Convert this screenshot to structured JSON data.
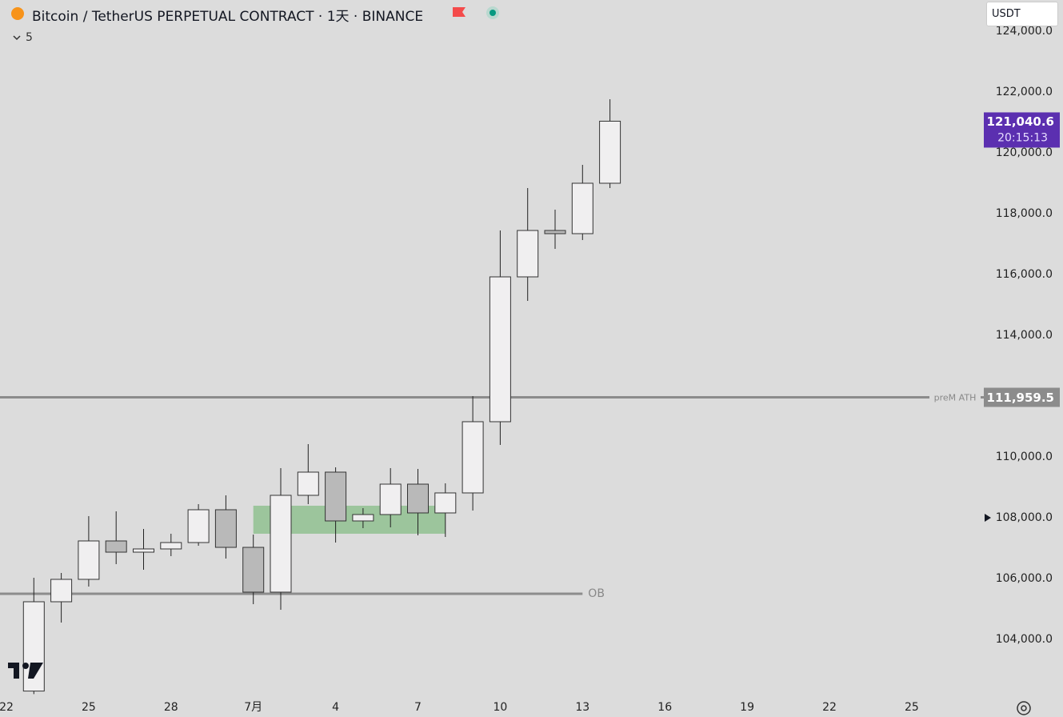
{
  "header": {
    "symbol": "Bitcoin / TetherUS PERPETUAL CONTRACT · 1天 · BINANCE",
    "indicator_count": "5",
    "currency": "USDT"
  },
  "chart_data": {
    "type": "candlestick",
    "categories": [
      "22",
      null,
      null,
      "25",
      null,
      null,
      "28",
      null,
      null,
      "7月",
      null,
      null,
      "4",
      null,
      null,
      "7",
      null,
      null,
      "10",
      null,
      null,
      "13",
      null,
      null,
      "16",
      null,
      null,
      "19",
      null,
      null,
      "22",
      null,
      null,
      "25",
      null,
      null
    ],
    "open": [
      null,
      102300,
      105237,
      105974,
      107237,
      106868,
      106974,
      107184,
      108263,
      107026,
      105553,
      108737,
      109500,
      107895,
      108105,
      109105,
      108158,
      108816,
      111158,
      115921,
      117447,
      117342,
      119000,
      null,
      null,
      null,
      null,
      null,
      null,
      null,
      null,
      null,
      null,
      null,
      null,
      null
    ],
    "high": [
      null,
      106026,
      106184,
      108053,
      108210,
      107632,
      107474,
      108447,
      108737,
      107447,
      109632,
      110421,
      109658,
      108316,
      109632,
      109605,
      109132,
      112000,
      117447,
      118842,
      118132,
      119605,
      121763,
      null,
      null,
      null,
      null,
      null,
      null,
      null,
      null,
      null,
      null,
      null,
      null,
      null
    ],
    "low": [
      null,
      102200,
      104553,
      105737,
      106474,
      106290,
      106737,
      107079,
      106658,
      105158,
      104974,
      108447,
      107184,
      107658,
      107684,
      107421,
      107368,
      108237,
      110395,
      115132,
      116842,
      117132,
      118842,
      null,
      null,
      null,
      null,
      null,
      null,
      null,
      null,
      null,
      null,
      null,
      null,
      null
    ],
    "close": [
      null,
      105237,
      105974,
      107237,
      106868,
      106974,
      107184,
      108263,
      107026,
      105553,
      108737,
      109500,
      107895,
      108105,
      109105,
      108158,
      108816,
      111158,
      115921,
      117447,
      117342,
      119000,
      121040.6,
      null,
      null,
      null,
      null,
      null,
      null,
      null,
      null,
      null,
      null,
      null,
      null,
      null
    ],
    "up_color": "#f0eff0",
    "down_color": "#b9b9b9",
    "ylim": [
      102184,
      125026
    ],
    "yticks": [
      {
        "value": 104000,
        "label": "104,000.0"
      },
      {
        "value": 106000,
        "label": "106,000.0"
      },
      {
        "value": 108000,
        "label": "108,000.0"
      },
      {
        "value": 110000,
        "label": "110,000.0"
      },
      {
        "value": 112000,
        "label": "112,000.0"
      },
      {
        "value": 114000,
        "label": "114,000.0"
      },
      {
        "value": 116000,
        "label": "116,000.0"
      },
      {
        "value": 118000,
        "label": "118,000.0"
      },
      {
        "value": 120000,
        "label": "120,000.0"
      },
      {
        "value": 122000,
        "label": "122,000.0"
      },
      {
        "value": 124000,
        "label": "124,000.0"
      }
    ],
    "levels": [
      {
        "name": "preM ATH",
        "value": 111959.5,
        "value_label": "111,959.5",
        "color": "#8c8c8c"
      },
      {
        "name": "OB",
        "value": 105500,
        "end": 21,
        "color": "#8c8c8c"
      }
    ],
    "zone": {
      "top": 108395,
      "bottom": 107474,
      "start": 9,
      "end": 16,
      "color": "#9cc59c"
    },
    "last_price": {
      "value": 121040.6,
      "label": "121,040.6",
      "countdown": "20:15:13",
      "color": "#5b2fb0"
    }
  }
}
